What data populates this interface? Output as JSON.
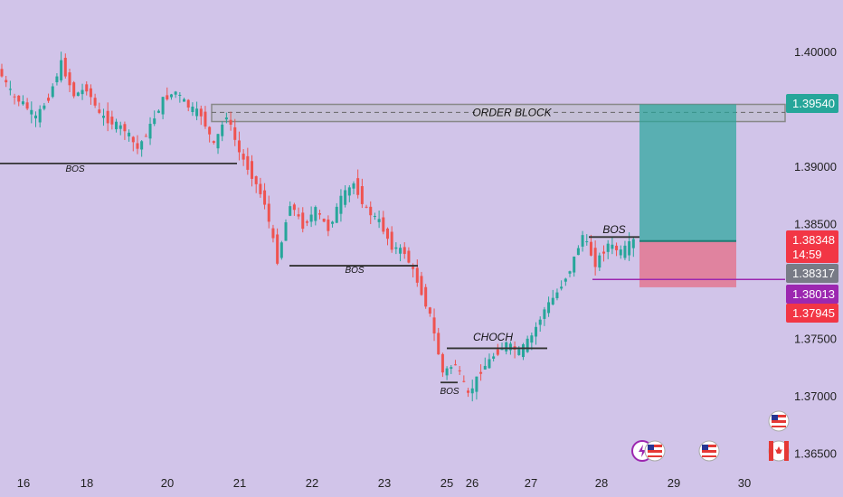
{
  "chart_data": {
    "type": "candlestick",
    "y_axis": {
      "ticks": [
        "1.40000",
        "1.39000",
        "1.38500",
        "1.37500",
        "1.37000",
        "1.36500"
      ],
      "range": [
        1.364,
        1.4045
      ]
    },
    "x_axis": {
      "ticks": [
        "16",
        "18",
        "20",
        "21",
        "22",
        "23",
        "25",
        "26",
        "27",
        "28",
        "29",
        "30"
      ]
    },
    "price_tags": [
      {
        "value": "1.39540",
        "color": "#26a69a"
      },
      {
        "value": "1.38348",
        "color": "#f23645",
        "sub": "14:59"
      },
      {
        "value": "1.38317",
        "color": "#787b86"
      },
      {
        "value": "1.38013",
        "color": "#9c27b0"
      },
      {
        "value": "1.37945",
        "color": "#f23645"
      }
    ],
    "annotations": {
      "order_block": {
        "label": "ORDER BLOCK",
        "top": 1.3954,
        "bottom": 1.3939,
        "mid": 1.3947
      },
      "structure": [
        {
          "label": "BOS",
          "price": 1.39025
        },
        {
          "label": "BOS",
          "price": 1.38133
        },
        {
          "label": "CHOCH",
          "price": 1.37413
        },
        {
          "label": "BOS",
          "price": 1.37115
        },
        {
          "label": "BOS",
          "price": 1.38383
        }
      ],
      "position": {
        "entry": 1.38348,
        "target": 1.3954,
        "stop": 1.37945,
        "current": 1.38317,
        "level_line": 1.38013
      }
    },
    "candles_close_path": [
      [
        1.3985,
        1.3965
      ],
      [
        1.3962,
        1.3955
      ],
      [
        1.3955,
        1.3942
      ],
      [
        1.3942,
        1.396
      ],
      [
        1.396,
        1.399
      ],
      [
        1.399,
        1.3962
      ],
      [
        1.3962,
        1.3968
      ],
      [
        1.3968,
        1.3945
      ],
      [
        1.3945,
        1.3938
      ],
      [
        1.3938,
        1.3932
      ],
      [
        1.3932,
        1.3915
      ],
      [
        1.3915,
        1.3935
      ],
      [
        1.3935,
        1.3958
      ],
      [
        1.3958,
        1.3965
      ],
      [
        1.3965,
        1.3952
      ],
      [
        1.3952,
        1.3945
      ],
      [
        1.3945,
        1.3918
      ],
      [
        1.3918,
        1.3945
      ],
      [
        1.3945,
        1.3912
      ],
      [
        1.3912,
        1.3892
      ],
      [
        1.3892,
        1.3868
      ],
      [
        1.3868,
        1.3818
      ],
      [
        1.3818,
        1.3868
      ],
      [
        1.3868,
        1.3848
      ],
      [
        1.3848,
        1.3862
      ],
      [
        1.3862,
        1.3845
      ],
      [
        1.3845,
        1.3872
      ],
      [
        1.3872,
        1.3885
      ],
      [
        1.3885,
        1.3862
      ],
      [
        1.3862,
        1.3852
      ],
      [
        1.3852,
        1.383
      ],
      [
        1.383,
        1.3825
      ],
      [
        1.3825,
        1.38
      ],
      [
        1.38,
        1.377
      ],
      [
        1.377,
        1.372
      ],
      [
        1.372,
        1.3728
      ],
      [
        1.3728,
        1.37
      ],
      [
        1.37,
        1.3722
      ],
      [
        1.3722,
        1.3735
      ],
      [
        1.3735,
        1.3745
      ],
      [
        1.3745,
        1.3738
      ],
      [
        1.3738,
        1.3752
      ],
      [
        1.3752,
        1.3775
      ],
      [
        1.3775,
        1.379
      ],
      [
        1.379,
        1.381
      ],
      [
        1.381,
        1.384
      ],
      [
        1.384,
        1.3815
      ],
      [
        1.3815,
        1.3832
      ],
      [
        1.3832,
        1.3825
      ],
      [
        1.3825,
        1.3835
      ]
    ]
  }
}
